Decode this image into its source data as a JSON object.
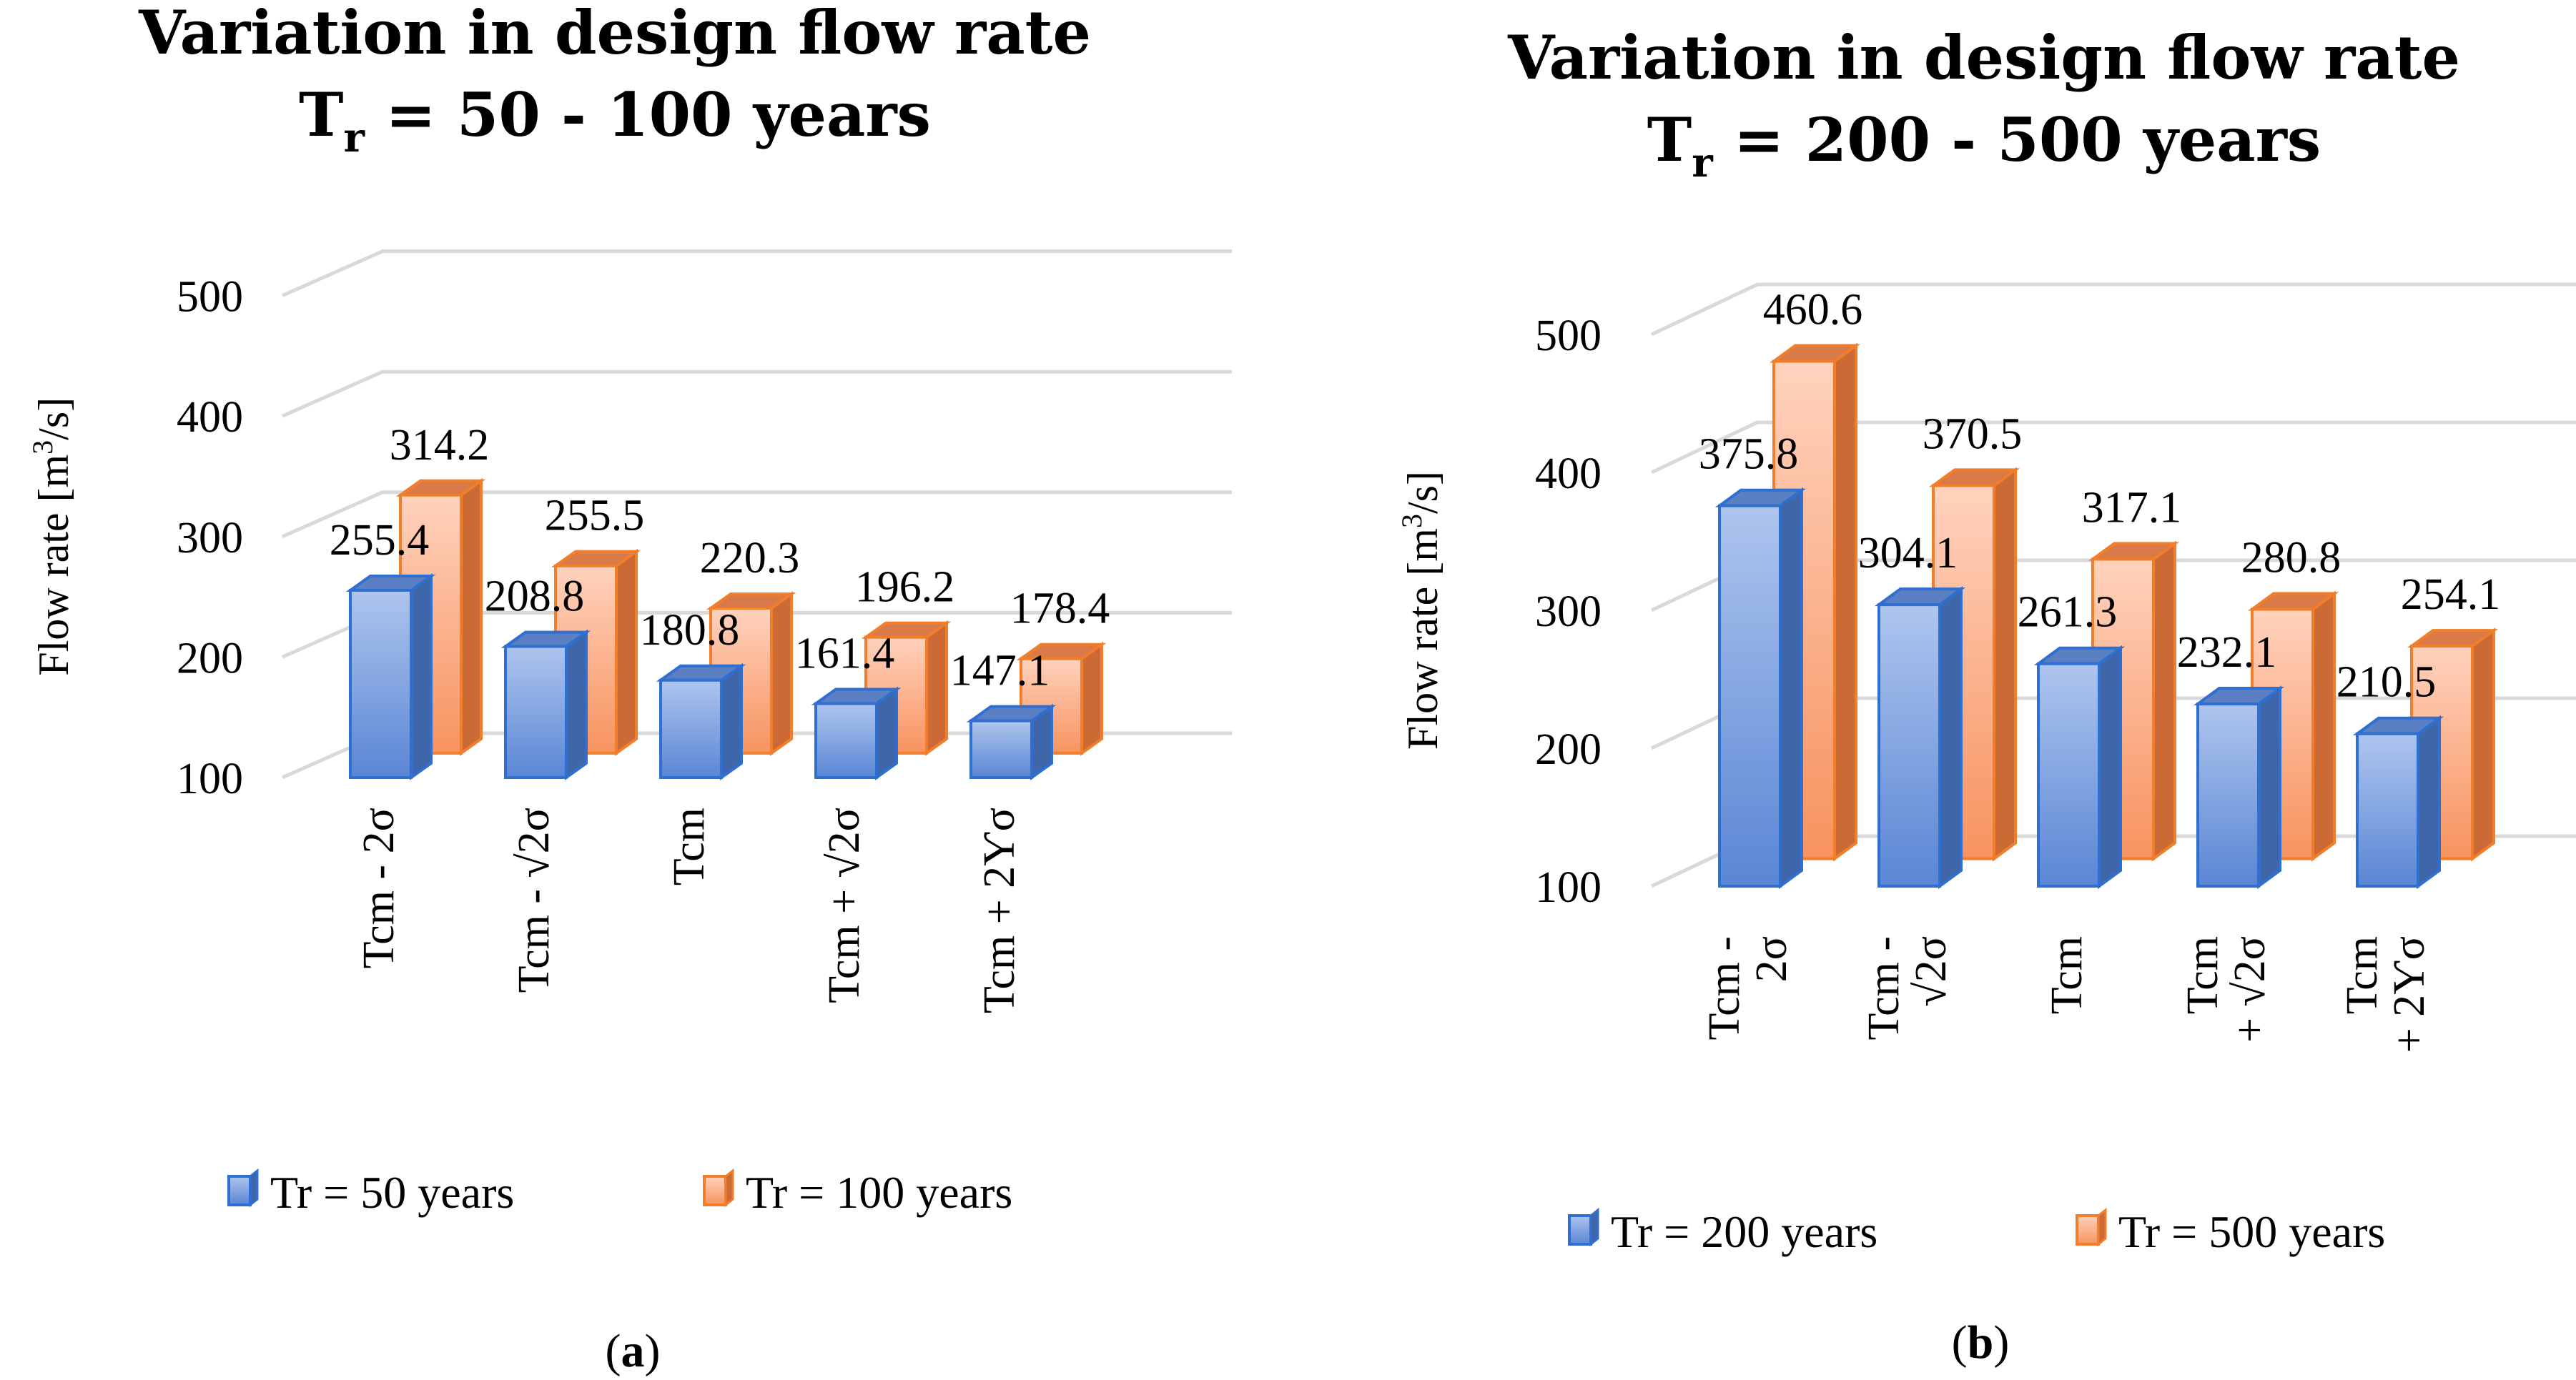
{
  "colors": {
    "s1_front_light": "#aec5ee",
    "s1_front_dark": "#5a86d4",
    "s1_side": "#3f66a8",
    "s1_top": "#5a7fc2",
    "s1_stroke": "#2f6fd1",
    "s2_front_light": "#ffd2bd",
    "s2_front_dark": "#f7935f",
    "s2_side": "#cc6a35",
    "s2_top": "#d97a48",
    "s2_stroke": "#f07e2a",
    "grid": "#d9d9d9"
  },
  "chart_data": [
    {
      "type": "bar",
      "panel_label": "a",
      "title_line1": "Variation in design flow rate",
      "title_line2_prefix": "T",
      "title_line2_sub": "r",
      "title_line2_rest": " = 50 - 100 years",
      "ylabel_prefix": "Flow rate [m",
      "ylabel_sup": "3",
      "ylabel_suffix": "/s]",
      "ylim": [
        100,
        500
      ],
      "yticks": [
        "100",
        "200",
        "300",
        "400",
        "500"
      ],
      "categories": [
        [
          "Tcm - 2σ"
        ],
        [
          "Tcm - √2σ"
        ],
        [
          "Tcm"
        ],
        [
          "Tcm + √2σ"
        ],
        [
          "Tcm + 2Ƴσ"
        ]
      ],
      "series": [
        {
          "name": "Tr = 50  years",
          "values": [
            255.4,
            208.8,
            180.8,
            161.4,
            147.1
          ],
          "labels": [
            "255.4",
            "208.8",
            "180.8",
            "161.4",
            "147.1"
          ]
        },
        {
          "name": "Tr = 100 years",
          "values": [
            314.2,
            255.5,
            220.3,
            196.2,
            178.4
          ],
          "labels": [
            "314.2",
            "255.5",
            "220.3",
            "196.2",
            "178.4"
          ]
        }
      ],
      "legend_position": "bottom"
    },
    {
      "type": "bar",
      "panel_label": "b",
      "title_line1": "Variation in design flow rate",
      "title_line2_prefix": "T",
      "title_line2_sub": "r",
      "title_line2_rest": " = 200 - 500 years",
      "ylabel_prefix": "Flow rate [m",
      "ylabel_sup": "3",
      "ylabel_suffix": "/s]",
      "ylim": [
        100,
        500
      ],
      "yticks": [
        "100",
        "200",
        "300",
        "400",
        "500"
      ],
      "categories": [
        [
          "Tcm -",
          "2σ"
        ],
        [
          "Tcm -",
          "√2σ"
        ],
        [
          "Tcm"
        ],
        [
          "Tcm",
          "+ √2σ"
        ],
        [
          "Tcm",
          "+ 2Ƴσ"
        ]
      ],
      "series": [
        {
          "name": "Tr = 200 years",
          "values": [
            375.8,
            304.1,
            261.3,
            232.1,
            210.5
          ],
          "labels": [
            "375.8",
            "304.1",
            "261.3",
            "232.1",
            "210.5"
          ]
        },
        {
          "name": "Tr = 500 years",
          "values": [
            460.6,
            370.5,
            317.1,
            280.8,
            254.1
          ],
          "labels": [
            "460.6",
            "370.5",
            "317.1",
            "280.8",
            "254.1"
          ]
        }
      ],
      "legend_position": "bottom"
    }
  ]
}
